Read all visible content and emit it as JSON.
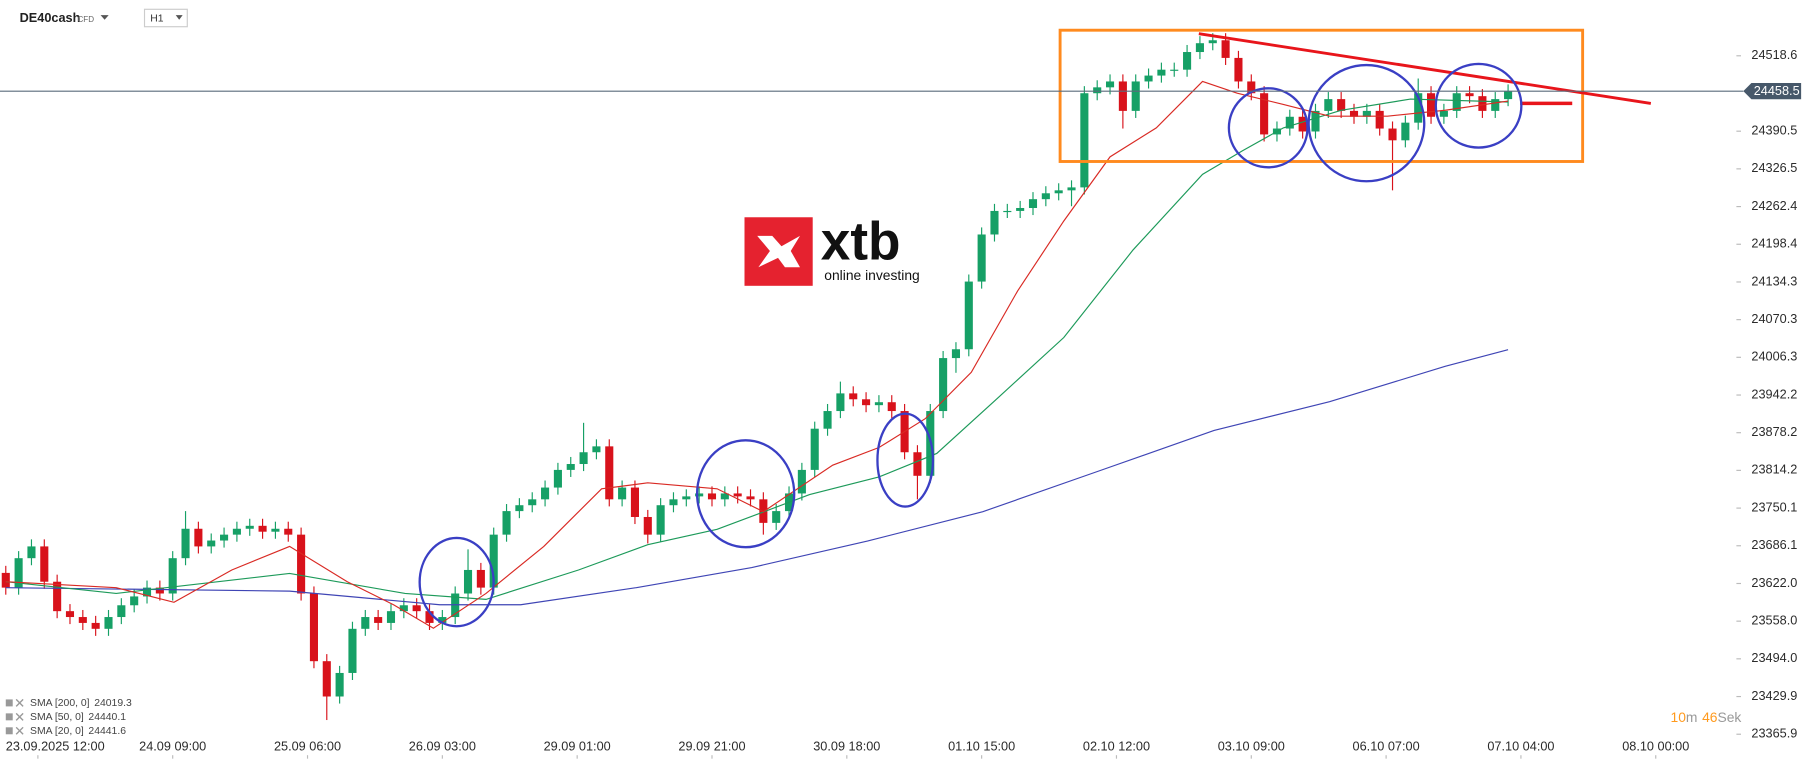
{
  "chart_data": {
    "type": "candlestick",
    "title": "DE40cash",
    "subtitle": "CFD",
    "timeframe": "H1",
    "watermark": {
      "text": "xtb",
      "tagline": "online investing"
    },
    "countdown": {
      "minutes": "10",
      "minutes_unit": "m",
      "seconds": "46",
      "seconds_unit": "Sek"
    },
    "up_color": "#16a066",
    "down_color": "#d8121b",
    "last_price": 24458.5,
    "ylim": [
      23320.4,
      24613.4
    ],
    "yticks": [
      24518.6,
      24390.5,
      24326.5,
      24262.4,
      24198.4,
      24134.3,
      24070.3,
      24006.3,
      23942.2,
      23878.2,
      23814.2,
      23750.1,
      23686.1,
      {
        "value": 23622,
        "label": "23622.0"
      },
      {
        "value": 23558,
        "label": "23558.0"
      },
      {
        "value": 23494,
        "label": "23494.0"
      },
      23429.9,
      23365.9
    ],
    "xlim": [
      -0.45,
      134.6
    ],
    "xticks": [
      {
        "value": 2.5,
        "label": "23.09.2025  12:00"
      },
      {
        "value": 13,
        "label": "24.09  09:00"
      },
      {
        "value": 23.5,
        "label": "25.09  06:00"
      },
      {
        "value": 34,
        "label": "26.09  03:00"
      },
      {
        "value": 44.5,
        "label": "29.09  01:00"
      },
      {
        "value": 55,
        "label": "29.09  21:00"
      },
      {
        "value": 65.5,
        "label": "30.09  18:00"
      },
      {
        "value": 76,
        "label": "01.10  15:00"
      },
      {
        "value": 86.5,
        "label": "02.10  12:00"
      },
      {
        "value": 97,
        "label": "03.10  09:00"
      },
      {
        "value": 107.5,
        "label": "06.10  07:00"
      },
      {
        "value": 118,
        "label": "07.10  04:00"
      },
      {
        "value": 128.5,
        "label": "08.10  00:00"
      }
    ],
    "grid": false,
    "candles": [
      [
        23640,
        23652,
        23603,
        23615
      ],
      [
        23615,
        23677,
        23603,
        23665
      ],
      [
        23665,
        23697,
        23653,
        23685
      ],
      [
        23685,
        23697,
        23613,
        23625
      ],
      [
        23625,
        23637,
        23563,
        23575
      ],
      [
        23575,
        23587,
        23553,
        23565
      ],
      [
        23565,
        23577,
        23543,
        23555
      ],
      [
        23555,
        23567,
        23533,
        23545
      ],
      [
        23545,
        23577,
        23533,
        23565
      ],
      [
        23565,
        23597,
        23553,
        23585
      ],
      [
        23585,
        23612,
        23573,
        23600
      ],
      [
        23600,
        23627,
        23588,
        23615
      ],
      [
        23615,
        23627,
        23593,
        23605
      ],
      [
        23605,
        23677,
        23593,
        23665
      ],
      [
        23665,
        23745,
        23653,
        23715
      ],
      [
        23715,
        23727,
        23673,
        23685
      ],
      [
        23685,
        23707,
        23673,
        23695
      ],
      [
        23695,
        23717,
        23683,
        23705
      ],
      [
        23705,
        23727,
        23693,
        23715
      ],
      [
        23715,
        23732,
        23703,
        23720
      ],
      [
        23720,
        23732,
        23698,
        23710
      ],
      [
        23710,
        23727,
        23698,
        23715
      ],
      [
        23715,
        23727,
        23693,
        23705
      ],
      [
        23705,
        23717,
        23593,
        23605
      ],
      [
        23605,
        23617,
        23478,
        23490
      ],
      [
        23490,
        23502,
        23390,
        23430
      ],
      [
        23430,
        23482,
        23418,
        23470
      ],
      [
        23470,
        23557,
        23458,
        23545
      ],
      [
        23545,
        23577,
        23533,
        23565
      ],
      [
        23565,
        23577,
        23543,
        23555
      ],
      [
        23555,
        23587,
        23543,
        23575
      ],
      [
        23575,
        23597,
        23563,
        23585
      ],
      [
        23585,
        23597,
        23563,
        23575
      ],
      [
        23575,
        23587,
        23543,
        23555
      ],
      [
        23555,
        23577,
        23543,
        23565
      ],
      [
        23565,
        23617,
        23553,
        23605
      ],
      [
        23605,
        23680,
        23593,
        23645
      ],
      [
        23645,
        23657,
        23603,
        23615
      ],
      [
        23615,
        23717,
        23603,
        23705
      ],
      [
        23705,
        23757,
        23693,
        23745
      ],
      [
        23745,
        23767,
        23733,
        23755
      ],
      [
        23755,
        23777,
        23743,
        23765
      ],
      [
        23765,
        23797,
        23753,
        23785
      ],
      [
        23785,
        23827,
        23773,
        23815
      ],
      [
        23815,
        23837,
        23803,
        23825
      ],
      [
        23825,
        23895,
        23813,
        23845
      ],
      [
        23845,
        23867,
        23833,
        23855
      ],
      [
        23855,
        23867,
        23753,
        23765
      ],
      [
        23765,
        23797,
        23753,
        23785
      ],
      [
        23785,
        23797,
        23723,
        23735
      ],
      [
        23735,
        23747,
        23690,
        23705
      ],
      [
        23705,
        23767,
        23693,
        23755
      ],
      [
        23755,
        23777,
        23743,
        23765
      ],
      [
        23765,
        23782,
        23753,
        23770
      ],
      [
        23770,
        23787,
        23758,
        23775
      ],
      [
        23775,
        23787,
        23753,
        23765
      ],
      [
        23765,
        23787,
        23753,
        23775
      ],
      [
        23775,
        23787,
        23758,
        23770
      ],
      [
        23770,
        23782,
        23753,
        23765
      ],
      [
        23765,
        23777,
        23705,
        23725
      ],
      [
        23725,
        23757,
        23713,
        23745
      ],
      [
        23745,
        23787,
        23733,
        23775
      ],
      [
        23775,
        23827,
        23763,
        23815
      ],
      [
        23815,
        23897,
        23803,
        23885
      ],
      [
        23885,
        23927,
        23873,
        23915
      ],
      [
        23915,
        23965,
        23903,
        23945
      ],
      [
        23945,
        23957,
        23923,
        23935
      ],
      [
        23935,
        23947,
        23913,
        23925
      ],
      [
        23925,
        23942,
        23913,
        23930
      ],
      [
        23930,
        23942,
        23903,
        23915
      ],
      [
        23915,
        23927,
        23833,
        23845
      ],
      [
        23845,
        23857,
        23765,
        23805
      ],
      [
        23805,
        23927,
        23793,
        23915
      ],
      [
        23915,
        24017,
        23903,
        24005
      ],
      [
        24005,
        24032,
        23980,
        24020
      ],
      [
        24020,
        24147,
        24008,
        24135
      ],
      [
        24135,
        24227,
        24123,
        24215
      ],
      [
        24215,
        24267,
        24203,
        24255
      ],
      [
        24255,
        24267,
        24243,
        24255
      ],
      [
        24255,
        24272,
        24243,
        24260
      ],
      [
        24260,
        24287,
        24248,
        24275
      ],
      [
        24275,
        24297,
        24263,
        24285
      ],
      [
        24285,
        24302,
        24273,
        24290
      ],
      [
        24290,
        24307,
        24263,
        24295
      ],
      [
        24295,
        24467,
        24283,
        24455
      ],
      [
        24455,
        24477,
        24443,
        24465
      ],
      [
        24465,
        24487,
        24453,
        24475
      ],
      [
        24475,
        24487,
        24395,
        24425
      ],
      [
        24425,
        24487,
        24413,
        24475
      ],
      [
        24475,
        24497,
        24463,
        24485
      ],
      [
        24485,
        24507,
        24473,
        24495
      ],
      [
        24495,
        24507,
        24483,
        24495
      ],
      [
        24495,
        24537,
        24483,
        24525
      ],
      [
        24525,
        24552,
        24513,
        24540
      ],
      [
        24540,
        24557,
        24528,
        24545
      ],
      [
        24545,
        24557,
        24503,
        24515
      ],
      [
        24515,
        24527,
        24463,
        24475
      ],
      [
        24475,
        24487,
        24443,
        24455
      ],
      [
        24455,
        24467,
        24373,
        24385
      ],
      [
        24385,
        24407,
        24373,
        24395
      ],
      [
        24395,
        24427,
        24383,
        24415
      ],
      [
        24415,
        24427,
        24378,
        24390
      ],
      [
        24390,
        24437,
        24378,
        24425
      ],
      [
        24425,
        24457,
        24413,
        24445
      ],
      [
        24445,
        24457,
        24413,
        24425
      ],
      [
        24425,
        24437,
        24403,
        24415
      ],
      [
        24415,
        24437,
        24403,
        24425
      ],
      [
        24425,
        24437,
        24383,
        24395
      ],
      [
        24395,
        24407,
        24290,
        24375
      ],
      [
        24375,
        24417,
        24363,
        24405
      ],
      [
        24405,
        24480,
        24393,
        24455
      ],
      [
        24455,
        24467,
        24403,
        24415
      ],
      [
        24415,
        24437,
        24403,
        24425
      ],
      [
        24425,
        24467,
        24413,
        24455
      ],
      [
        24455,
        24467,
        24438,
        24450
      ],
      [
        24450,
        24462,
        24413,
        24425
      ],
      [
        24425,
        24457,
        24413,
        24445
      ],
      [
        24445,
        24470,
        24433,
        24458
      ]
    ],
    "series": [
      {
        "name": "SMA [200, 0]",
        "color": "#3f45b5",
        "last_value": 24019.3,
        "x": [
          0,
          22.1,
          33.8,
          40.1,
          49.1,
          58.1,
          67.1,
          76.1,
          85.1,
          94.1,
          103.1,
          112.1,
          117
        ],
        "values": [
          23615,
          23609,
          23586,
          23586,
          23615,
          23649,
          23694,
          23744,
          23813,
          23882,
          23931,
          23991,
          24019.3
        ]
      },
      {
        "name": "SMA [50, 0]",
        "color": "#1d9a5a",
        "last_value": 24440.1,
        "x": [
          0,
          8.6,
          22.1,
          31.1,
          37.4,
          44.6,
          50,
          55.4,
          62.6,
          68,
          72.5,
          77,
          82.4,
          87.8,
          93.2,
          96.3,
          99.5,
          104,
          109.4,
          117
        ],
        "values": [
          23625,
          23605,
          23639,
          23605,
          23595,
          23645,
          23688,
          23714,
          23773,
          23803,
          23843,
          23932,
          24040,
          24189,
          24317,
          24357,
          24396,
          24426,
          24445,
          24440.1
        ]
      },
      {
        "name": "SMA [20, 0]",
        "color": "#d92a24",
        "last_value": 24441.6,
        "x": [
          0,
          8.6,
          13.1,
          17.6,
          22.1,
          26.6,
          30.2,
          33.3,
          37.4,
          41.9,
          46.4,
          50,
          55.4,
          59,
          64.4,
          68,
          71.6,
          75.2,
          78.8,
          82.4,
          86,
          89.6,
          93.2,
          95.9,
          99.5,
          103.1,
          107.6,
          112.1,
          117
        ],
        "values": [
          23625,
          23615,
          23590,
          23645,
          23685,
          23625,
          23586,
          23546,
          23605,
          23685,
          23783,
          23793,
          23783,
          23744,
          23823,
          23853,
          23902,
          23981,
          24119,
          24238,
          24347,
          24396,
          24475,
          24455,
          24436,
          24416,
          24416,
          24426,
          24441.6
        ]
      }
    ]
  }
}
